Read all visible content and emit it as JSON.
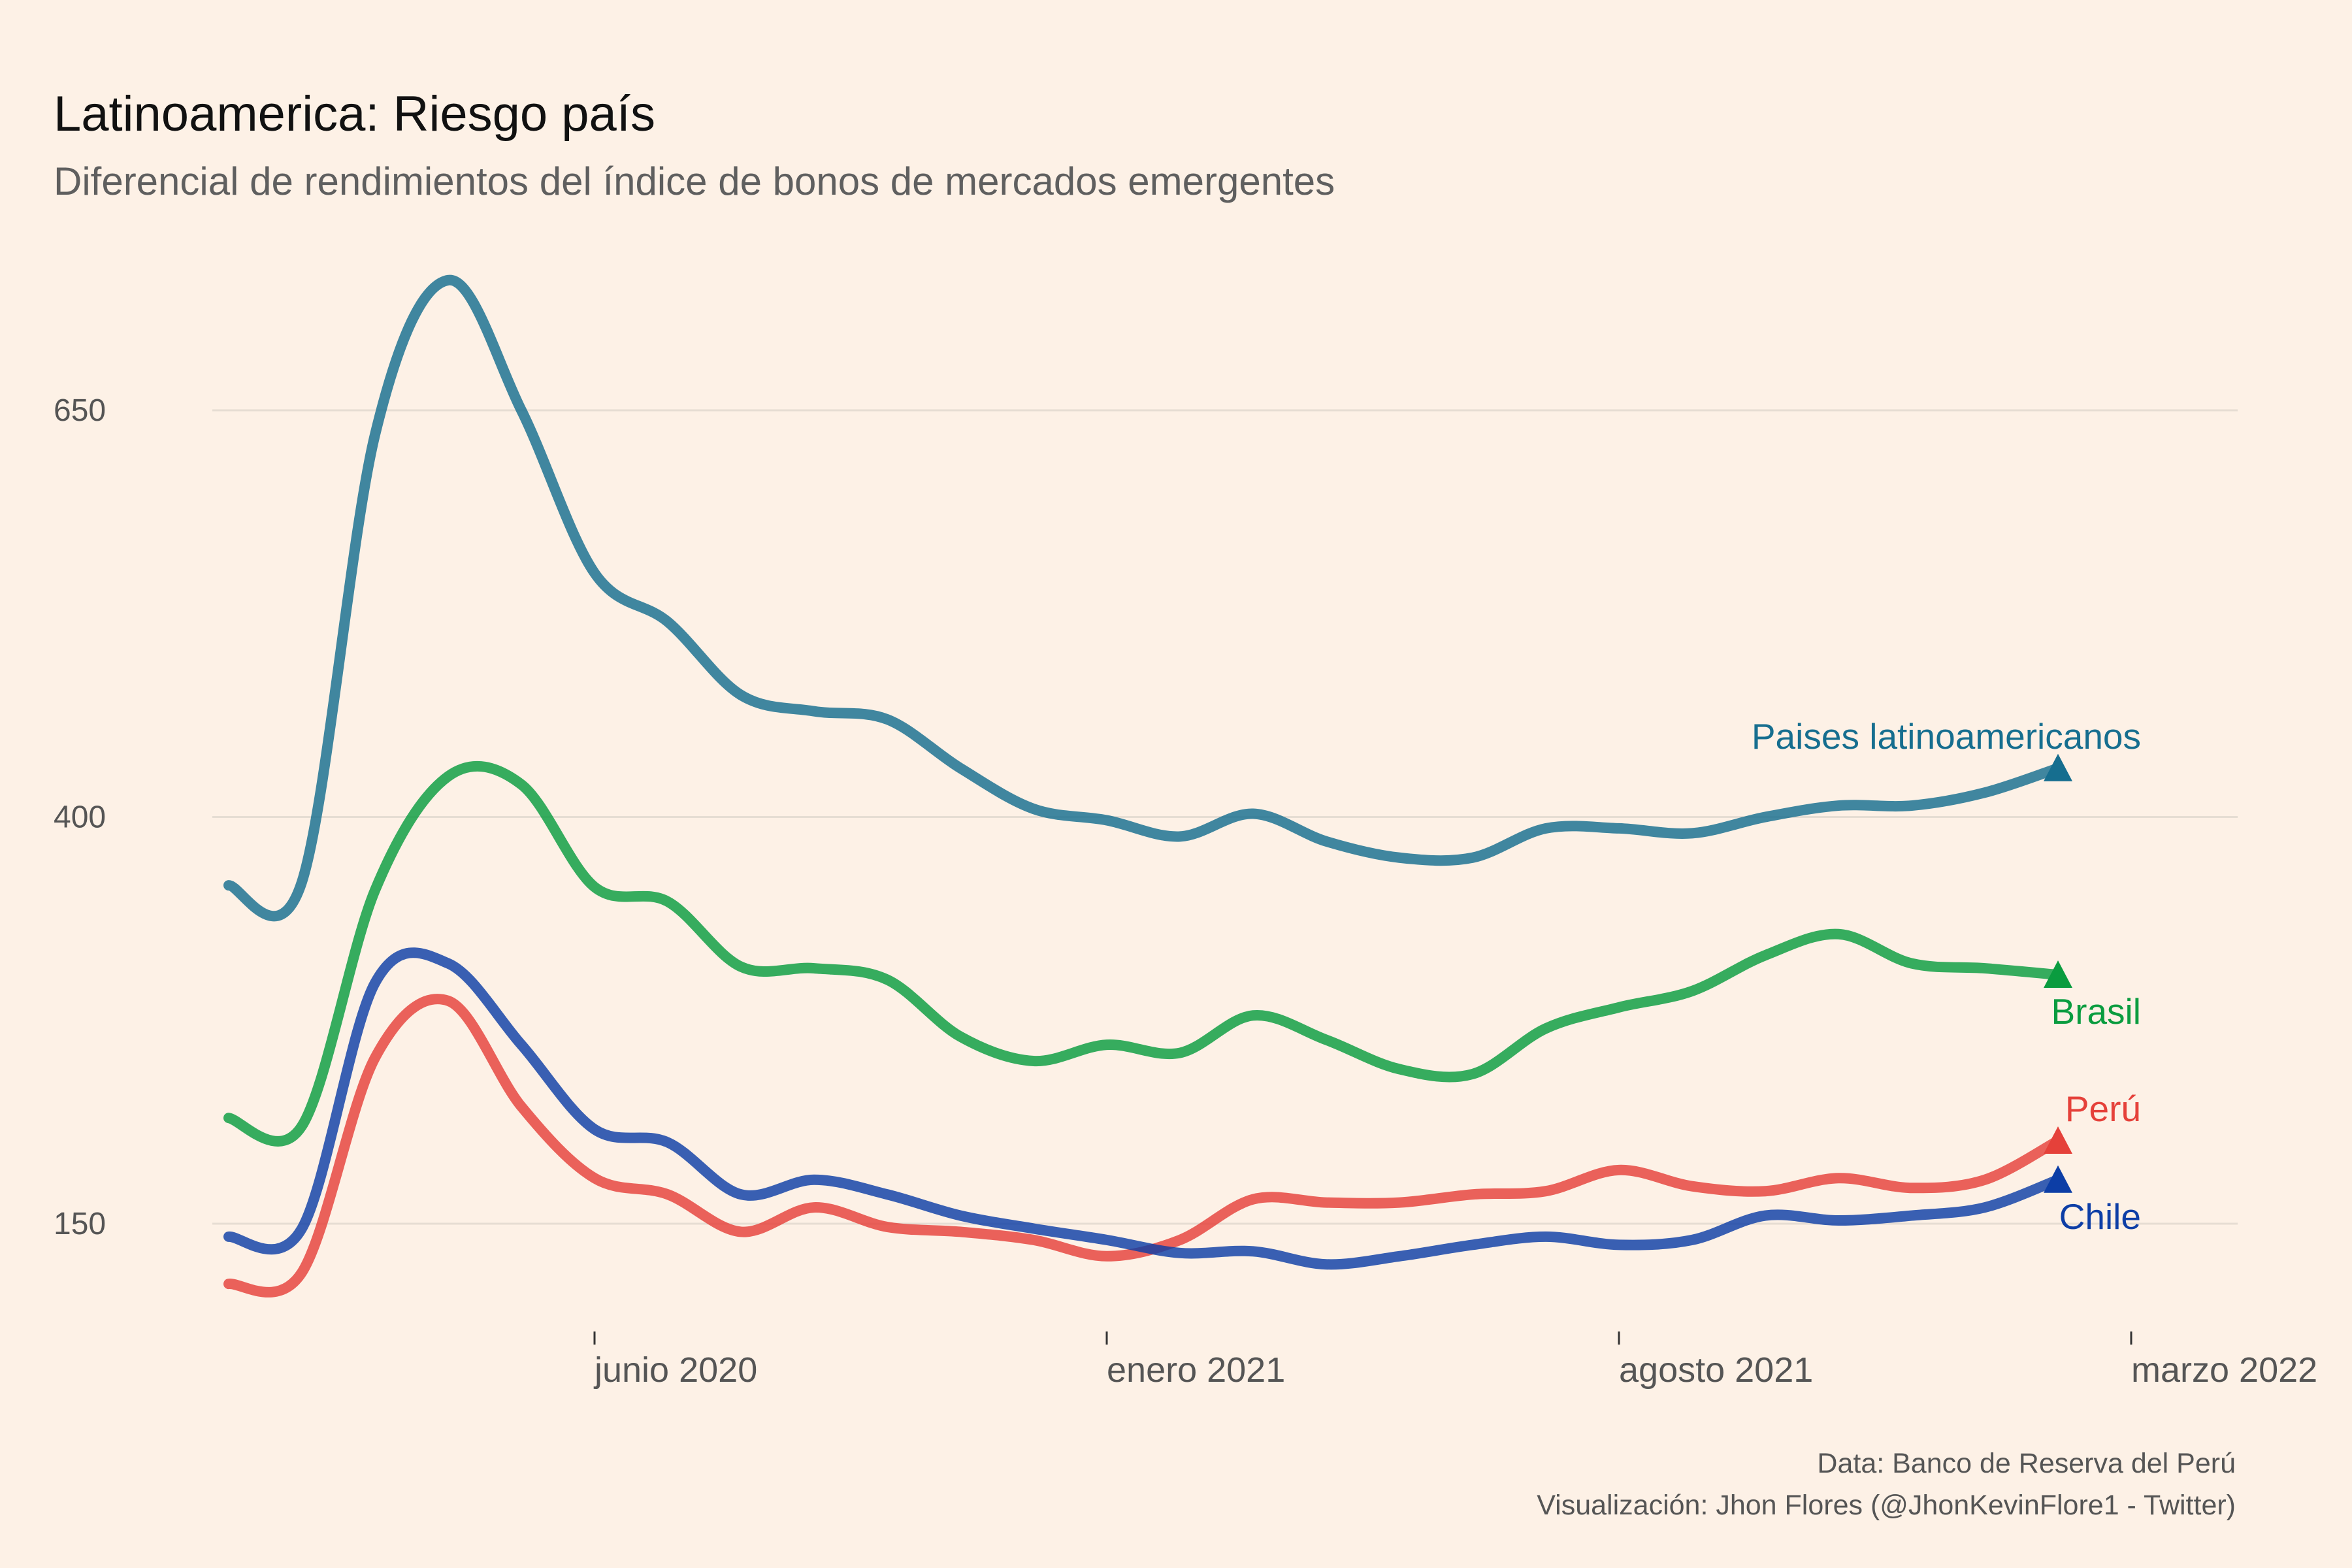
{
  "colors": {
    "background": "#fdf1e6",
    "latam": "#166e8f",
    "brasil": "#0a9c3f",
    "peru": "#e5413a",
    "chile": "#0d3ea6"
  },
  "chart_data": {
    "type": "line",
    "title": "Latinoamerica: Riesgo país",
    "subtitle": "Diferencial de rendimientos del índice de bonos de mercados emergentes",
    "xlabel": "",
    "ylabel": "",
    "x": [
      "2020-01",
      "2020-02",
      "2020-03",
      "2020-04",
      "2020-05",
      "2020-06",
      "2020-07",
      "2020-08",
      "2020-09",
      "2020-10",
      "2020-11",
      "2020-12",
      "2021-01",
      "2021-02",
      "2021-03",
      "2021-04",
      "2021-05",
      "2021-06",
      "2021-07",
      "2021-08",
      "2021-09",
      "2021-10",
      "2021-11",
      "2021-12",
      "2022-01",
      "2022-02"
    ],
    "x_ticks": [
      {
        "value": "2020-06",
        "label": "junio 2020"
      },
      {
        "value": "2021-01",
        "label": "enero 2021"
      },
      {
        "value": "2021-08",
        "label": "agosto 2021"
      },
      {
        "value": "2022-03",
        "label": "marzo 2022"
      }
    ],
    "y_ticks": [
      150,
      400,
      650
    ],
    "ylim": [
      80,
      740
    ],
    "grid": "horizontal",
    "series": [
      {
        "name": "Paises latinoamericanos",
        "color_key": "latam",
        "label_position": "above",
        "values": [
          358,
          360,
          635,
          730,
          650,
          550,
          520,
          475,
          465,
          460,
          430,
          405,
          398,
          388,
          402,
          385,
          375,
          375,
          393,
          393,
          390,
          400,
          407,
          407,
          415,
          430
        ]
      },
      {
        "name": "Brasil",
        "color_key": "brasil",
        "label_position": "below",
        "values": [
          215,
          210,
          355,
          425,
          420,
          357,
          348,
          308,
          307,
          300,
          265,
          250,
          260,
          255,
          278,
          263,
          245,
          242,
          270,
          283,
          293,
          315,
          328,
          310,
          307,
          303
        ]
      },
      {
        "name": "Perú",
        "color_key": "peru",
        "label_position": "above",
        "values": [
          113,
          120,
          252,
          287,
          222,
          178,
          168,
          145,
          160,
          148,
          145,
          140,
          130,
          140,
          165,
          163,
          163,
          168,
          170,
          183,
          173,
          170,
          178,
          172,
          177,
          201
        ]
      },
      {
        "name": "Chile",
        "color_key": "chile",
        "label_position": "below",
        "values": [
          142,
          147,
          298,
          310,
          260,
          208,
          200,
          168,
          177,
          168,
          155,
          147,
          140,
          132,
          133,
          125,
          130,
          137,
          142,
          137,
          140,
          155,
          152,
          155,
          160,
          177
        ]
      }
    ],
    "annotations": [
      "Data: Banco de Reserva del Perú",
      "Visualización: Jhon Flores (@JhonKevinFlore1 - Twitter)"
    ]
  }
}
